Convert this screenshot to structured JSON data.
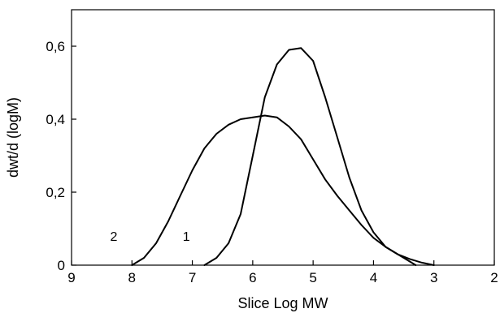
{
  "chart_data": {
    "type": "line",
    "title": "",
    "xlabel": "Slice Log MW",
    "ylabel": "dwt/d (logM)",
    "xlim": [
      9,
      2
    ],
    "ylim": [
      0,
      0.7
    ],
    "x_ticks": [
      9,
      8,
      7,
      6,
      5,
      4,
      3,
      2
    ],
    "x_tick_labels": [
      "9",
      "8",
      "7",
      "6",
      "5",
      "4",
      "3",
      "2"
    ],
    "y_ticks": [
      0,
      0.2,
      0.4,
      0.6
    ],
    "y_tick_labels": [
      "0",
      "0,2",
      "0,4",
      "0,6"
    ],
    "grid": false,
    "series": [
      {
        "label": "2",
        "label_at": [
          8.3,
          0.08
        ],
        "x": [
          8.0,
          7.8,
          7.6,
          7.4,
          7.2,
          7.0,
          6.8,
          6.6,
          6.4,
          6.2,
          6.0,
          5.8,
          5.6,
          5.4,
          5.2,
          5.0,
          4.8,
          4.6,
          4.4,
          4.2,
          4.0,
          3.8,
          3.6,
          3.4,
          3.2,
          3.0
        ],
        "y": [
          0.0,
          0.02,
          0.06,
          0.12,
          0.19,
          0.26,
          0.32,
          0.36,
          0.385,
          0.4,
          0.405,
          0.41,
          0.405,
          0.38,
          0.345,
          0.29,
          0.235,
          0.19,
          0.15,
          0.11,
          0.075,
          0.05,
          0.03,
          0.017,
          0.007,
          0.0
        ]
      },
      {
        "label": "1",
        "label_at": [
          7.1,
          0.08
        ],
        "x": [
          6.8,
          6.6,
          6.4,
          6.2,
          6.0,
          5.8,
          5.6,
          5.4,
          5.2,
          5.0,
          4.8,
          4.6,
          4.4,
          4.2,
          4.0,
          3.8,
          3.7,
          3.6,
          3.5,
          3.4,
          3.3
        ],
        "y": [
          0.0,
          0.02,
          0.06,
          0.14,
          0.3,
          0.46,
          0.55,
          0.59,
          0.595,
          0.56,
          0.46,
          0.35,
          0.24,
          0.15,
          0.09,
          0.05,
          0.04,
          0.03,
          0.02,
          0.01,
          0.0
        ]
      }
    ]
  }
}
